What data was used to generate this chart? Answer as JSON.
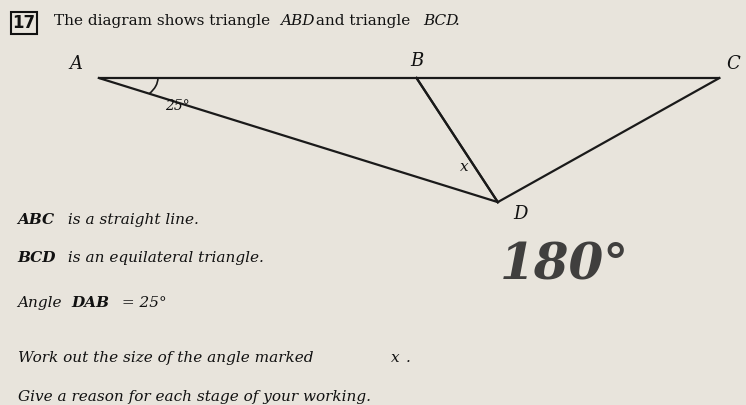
{
  "title_num": "17",
  "title_text": "The diagram shows triangle ",
  "title_italic": "ABD",
  "title_text2": " and triangle ",
  "title_italic2": "BCD",
  "title_end": ".",
  "points": {
    "A": [
      0.13,
      0.8
    ],
    "B": [
      0.56,
      0.8
    ],
    "C": [
      0.97,
      0.8
    ],
    "D": [
      0.67,
      0.47
    ]
  },
  "label_A": "A",
  "label_B": "B",
  "label_C": "C",
  "label_D": "D",
  "angle_label": "25°",
  "x_label": "x",
  "line1": "ABC is a straight line.",
  "line1_italic": [
    "ABC"
  ],
  "line2": "BCD is an equilateral triangle.",
  "line2_italic": [
    "BCD"
  ],
  "line3_pre": "Angle ",
  "line3_italic": "DAB",
  "line3_post": " = 25°",
  "line4": "Work out the size of the angle marked x.",
  "line5": "Give a reason for each stage of your working.",
  "handwritten": "180°",
  "bg_color": "#e8e4dc",
  "line_color": "#1a1a1a",
  "text_color": "#111111",
  "fig_width": 7.46,
  "fig_height": 4.05,
  "dpi": 100
}
